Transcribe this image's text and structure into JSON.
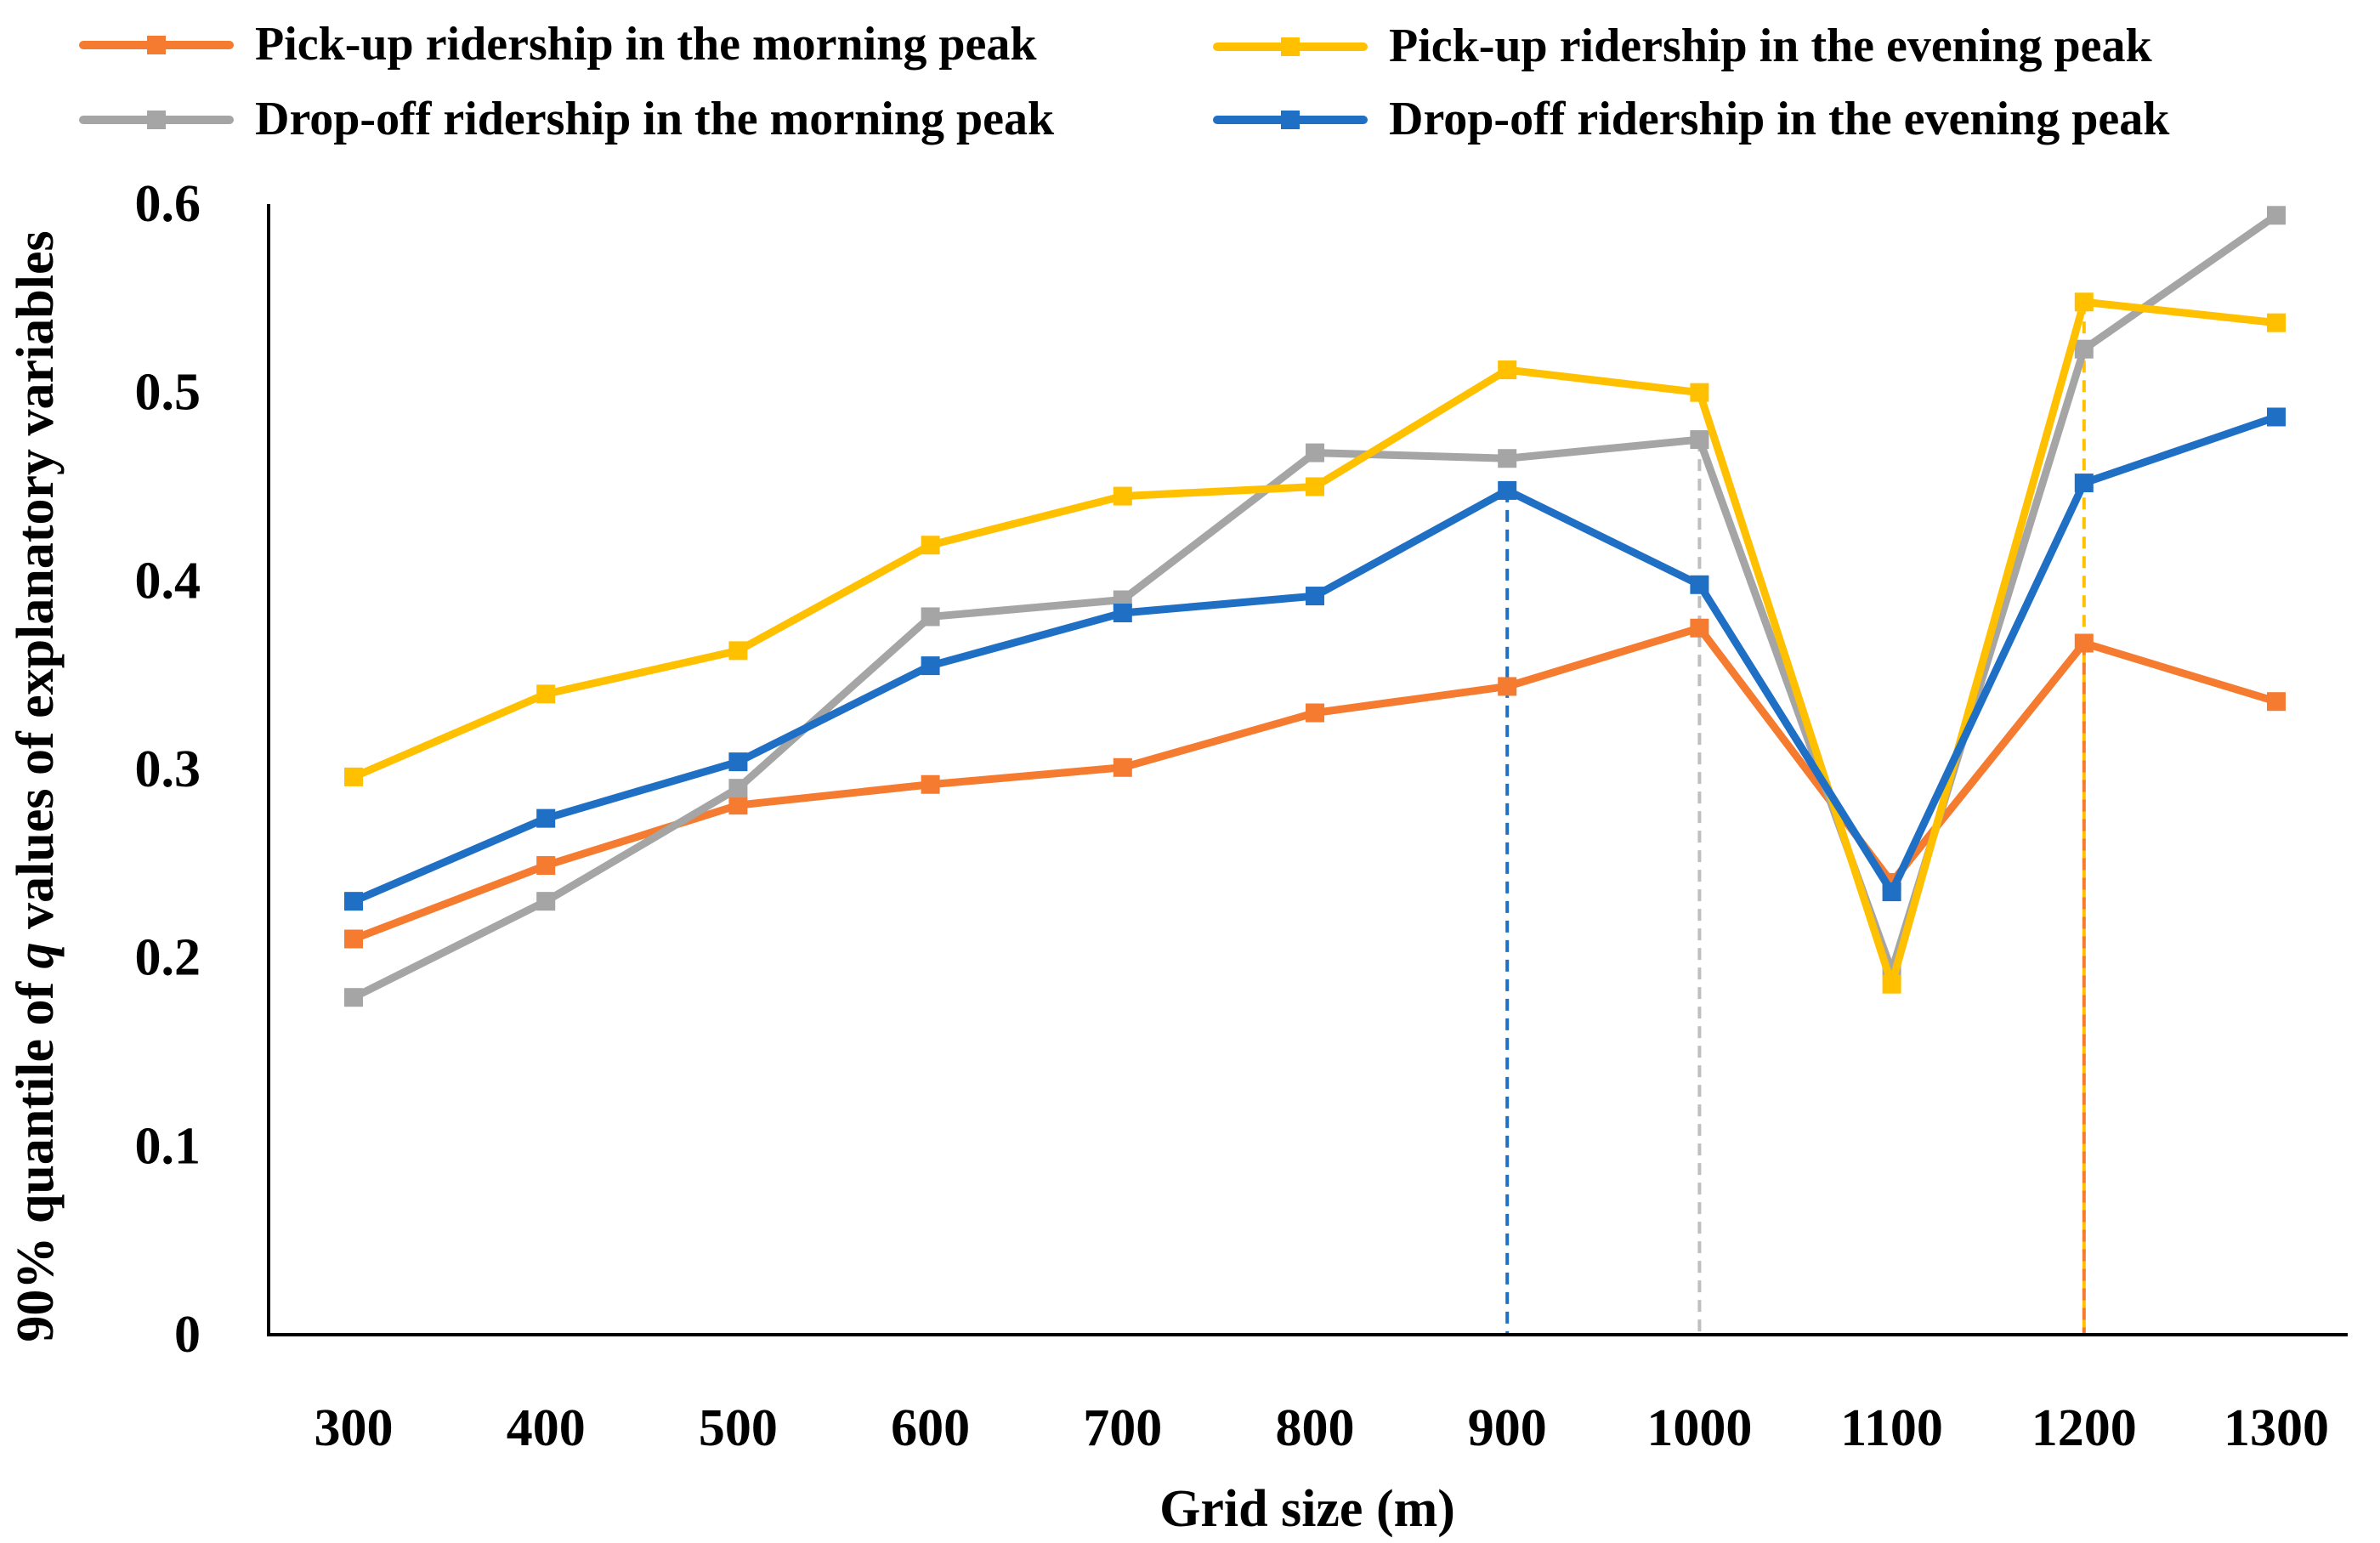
{
  "chart_data": {
    "type": "line",
    "title": "",
    "xlabel": "Grid size (m)",
    "ylabel_parts": [
      "90% quantile of ",
      "q",
      " values of explanatory variables"
    ],
    "x": [
      300,
      400,
      500,
      600,
      700,
      800,
      900,
      1000,
      1100,
      1200,
      1300
    ],
    "x_tick_labels": [
      "300",
      "400",
      "500",
      "600",
      "700",
      "800",
      "900",
      "1000",
      "1100",
      "1200",
      "1300"
    ],
    "ylim": [
      0,
      0.6
    ],
    "y_ticks": [
      0,
      0.1,
      0.2,
      0.3,
      0.4,
      0.5,
      0.6
    ],
    "y_tick_labels": [
      "0",
      "0.1",
      "0.2",
      "0.3",
      "0.4",
      "0.5",
      "0.6"
    ],
    "grid": false,
    "legend_position": "top",
    "series": [
      {
        "name": "Pick-up ridership in the morning peak",
        "color": "#F47B30",
        "values": [
          0.21,
          0.249,
          0.281,
          0.292,
          0.301,
          0.33,
          0.344,
          0.375,
          0.24,
          0.367,
          0.336
        ]
      },
      {
        "name": "Drop-off ridership in the morning peak",
        "color": "#A5A5A5",
        "values": [
          0.179,
          0.23,
          0.29,
          0.381,
          0.39,
          0.468,
          0.465,
          0.475,
          0.193,
          0.523,
          0.594
        ]
      },
      {
        "name": "Pick-up ridership in the evening peak",
        "color": "#FFC000",
        "values": [
          0.296,
          0.34,
          0.363,
          0.419,
          0.445,
          0.45,
          0.512,
          0.5,
          0.186,
          0.548,
          0.537
        ]
      },
      {
        "name": "Drop-off ridership in the evening peak",
        "color": "#1F6FC4",
        "values": [
          0.23,
          0.274,
          0.304,
          0.355,
          0.383,
          0.392,
          0.448,
          0.398,
          0.235,
          0.452,
          0.487
        ]
      }
    ],
    "annotations": [
      {
        "type": "vertical-dashed-line",
        "x": 900,
        "y_top": 0.448,
        "color": "#1F6FC4",
        "series": "Drop-off ridership in the evening peak"
      },
      {
        "type": "vertical-dashed-line",
        "x": 1000,
        "y_top": 0.475,
        "color": "#BFBFBF",
        "series": "Drop-off ridership in the morning peak"
      },
      {
        "type": "vertical-dashed-line",
        "x": 1200,
        "y_top": 0.548,
        "color": "#FFC000",
        "series": "Pick-up ridership in the evening peak"
      },
      {
        "type": "vertical-dashed-line",
        "x": 1200,
        "y_top": 0.367,
        "color": "#F47B30",
        "series": "Pick-up ridership in the morning peak"
      }
    ]
  }
}
